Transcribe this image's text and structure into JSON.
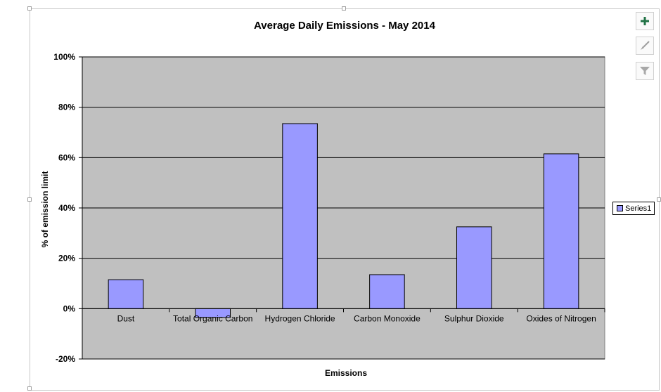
{
  "chart_data": {
    "type": "bar",
    "title": "Average Daily Emissions - May 2014",
    "xlabel": "Emissions",
    "ylabel": "% of emission limit",
    "categories": [
      "Dust",
      "Total Organic Carbon",
      "Hydrogen Chloride",
      "Carbon Monoxide",
      "Sulphur Dioxide",
      "Oxides of Nitrogen"
    ],
    "series": [
      {
        "name": "Series1",
        "values": [
          11.5,
          -3.5,
          73.5,
          13.5,
          32.5,
          61.5
        ],
        "color": "#9999ff"
      }
    ],
    "ylim": [
      -20,
      100
    ],
    "yticks": [
      "-20%",
      "0%",
      "20%",
      "40%",
      "60%",
      "80%",
      "100%"
    ],
    "ytick_values": [
      -20,
      0,
      20,
      40,
      60,
      80,
      100
    ],
    "grid": true,
    "plot_background": "#c0c0c0",
    "legend_position": "right"
  },
  "toolbar": {
    "chart_elements_icon": "plus-icon",
    "chart_styles_icon": "brush-icon",
    "chart_filters_icon": "filter-icon",
    "accent": "#217346"
  }
}
